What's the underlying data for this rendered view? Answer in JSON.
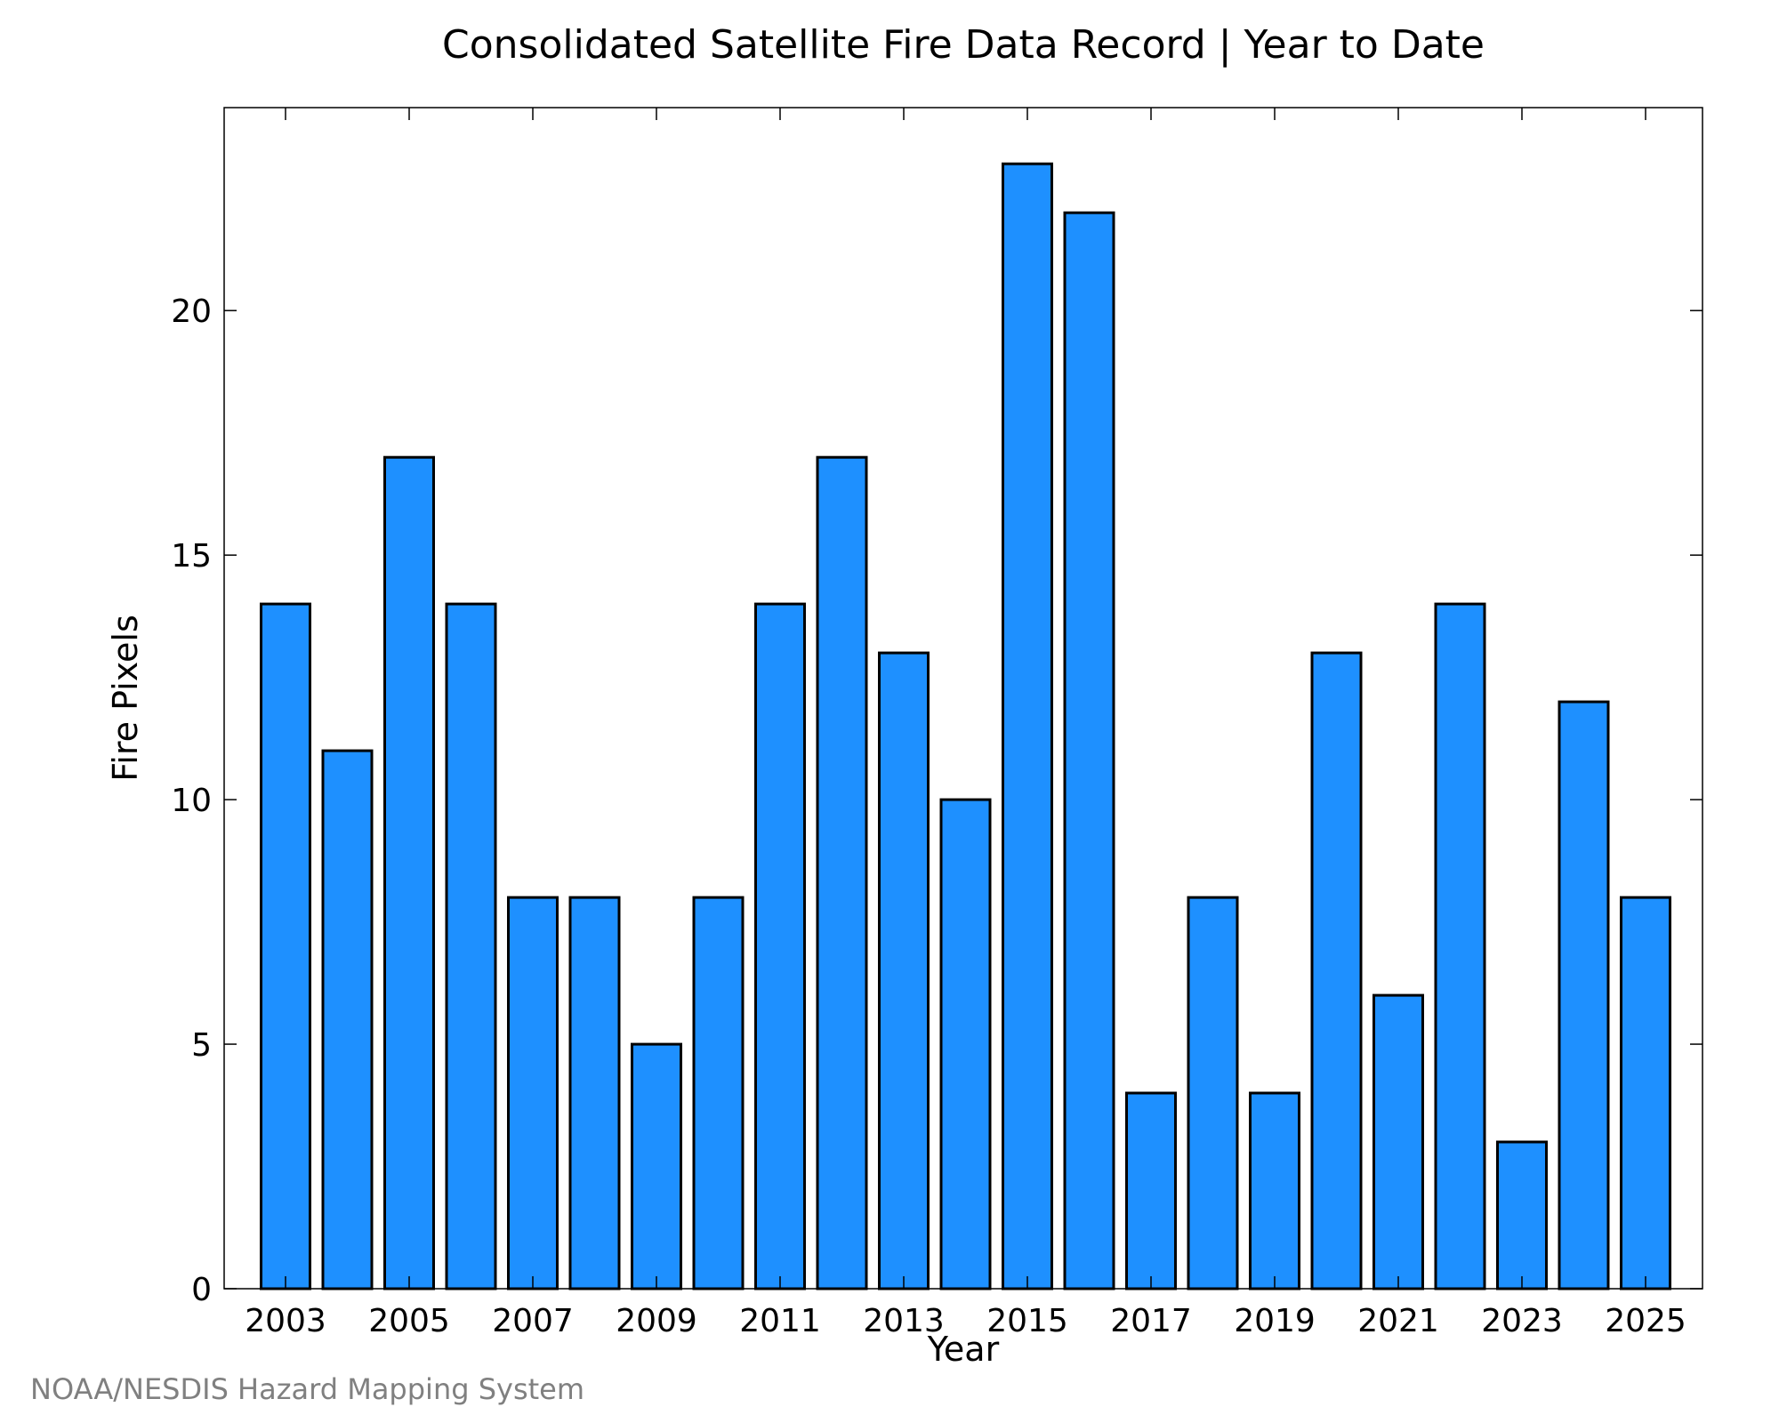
{
  "chart_data": {
    "type": "bar",
    "title": "Consolidated Satellite Fire Data Record | Year to Date",
    "xlabel": "Year",
    "ylabel": "Fire Pixels",
    "categories": [
      "2003",
      "2004",
      "2005",
      "2006",
      "2007",
      "2008",
      "2009",
      "2010",
      "2011",
      "2012",
      "2013",
      "2014",
      "2015",
      "2016",
      "2017",
      "2018",
      "2019",
      "2020",
      "2021",
      "2022",
      "2023",
      "2024",
      "2025"
    ],
    "values": [
      14,
      11,
      17,
      14,
      8,
      8,
      5,
      8,
      14,
      17,
      13,
      10,
      23,
      22,
      4,
      8,
      4,
      13,
      6,
      14,
      3,
      12,
      8
    ],
    "x_tick_labels": [
      "2003",
      "2005",
      "2007",
      "2009",
      "2011",
      "2013",
      "2015",
      "2017",
      "2019",
      "2021",
      "2023",
      "2025"
    ],
    "y_ticks": [
      0,
      5,
      10,
      15,
      20
    ],
    "ylim": [
      0,
      24.15
    ],
    "grid": false,
    "bar_color": "#1E90FF",
    "edge_color": "#000000"
  },
  "source_note": "NOAA/NESDIS Hazard Mapping System"
}
